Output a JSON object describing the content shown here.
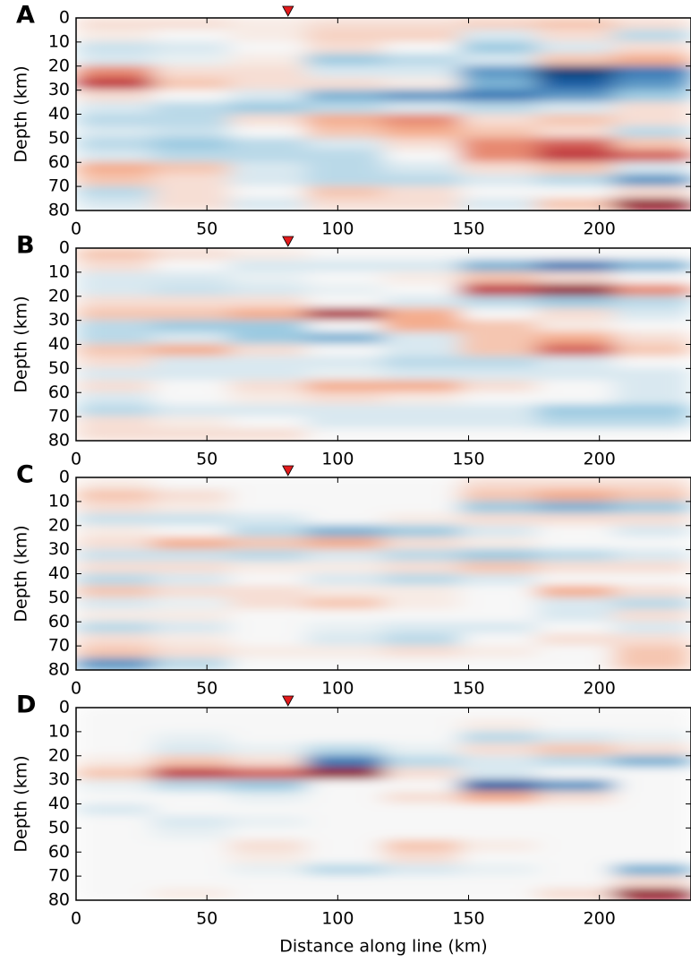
{
  "chart_data": [
    {
      "type": "heatmap",
      "title": "A",
      "ylabel": "Depth (km)",
      "xlim": [
        0,
        235
      ],
      "xticks": [
        0,
        50,
        100,
        150,
        200
      ],
      "ylim": [
        80,
        0
      ],
      "yticks": [
        0,
        10,
        20,
        30,
        40,
        50,
        60,
        70,
        80
      ],
      "zlim": [
        -1,
        1
      ],
      "colormap": [
        "#053061",
        "#2166ac",
        "#92c5de",
        "#f7f7f7",
        "#f4a582",
        "#b2182b",
        "#67001f"
      ],
      "marker_x": 81,
      "marker_color": "#e31a1c",
      "x": [
        14.7,
        44.1,
        73.4,
        102.8,
        132.2,
        161.6,
        190.9,
        220.3
      ],
      "y": [
        2.5,
        7.5,
        12.5,
        17.5,
        22.5,
        27.5,
        32.5,
        37.5,
        42.5,
        47.5,
        52.5,
        57.5,
        62.5,
        67.5,
        72.5,
        77.5
      ],
      "z": [
        [
          0.1,
          0.1,
          0.05,
          0.1,
          0.1,
          0.15,
          0.2,
          0.1
        ],
        [
          0.05,
          0,
          0.05,
          0.15,
          0.15,
          -0.1,
          0.1,
          -0.2
        ],
        [
          -0.15,
          -0.1,
          0,
          0.1,
          0,
          -0.3,
          -0.1,
          0.1
        ],
        [
          -0.1,
          -0.05,
          0.05,
          -0.3,
          -0.2,
          -0.1,
          0.2,
          0.3
        ],
        [
          0.4,
          0.1,
          0.1,
          -0.1,
          -0.1,
          -0.5,
          -0.9,
          -0.6
        ],
        [
          0.6,
          0.2,
          0.1,
          0.1,
          0.05,
          -0.4,
          -0.7,
          -0.5
        ],
        [
          0.1,
          0,
          -0.1,
          -0.4,
          -0.5,
          -0.6,
          -0.5,
          -0.3
        ],
        [
          -0.1,
          -0.2,
          -0.3,
          -0.2,
          -0.1,
          -0.2,
          -0.1,
          0.1
        ],
        [
          -0.2,
          -0.2,
          0.1,
          0.3,
          0.4,
          0.1,
          0.2,
          0.1
        ],
        [
          -0.1,
          -0.15,
          0,
          0.2,
          0.3,
          0.2,
          0.1,
          -0.2
        ],
        [
          -0.2,
          -0.3,
          -0.2,
          -0.1,
          0.1,
          0.4,
          0.5,
          0.2
        ],
        [
          -0.1,
          -0.2,
          -0.2,
          -0.2,
          0,
          0.4,
          0.6,
          0.5
        ],
        [
          0.3,
          0.2,
          -0.1,
          -0.2,
          -0.1,
          0.1,
          0.2,
          -0.1
        ],
        [
          0.2,
          0.1,
          -0.1,
          -0.2,
          -0.2,
          -0.1,
          -0.2,
          -0.5
        ],
        [
          -0.2,
          0.1,
          0,
          0.2,
          0.1,
          0,
          0,
          0.1
        ],
        [
          -0.1,
          0.1,
          -0.1,
          0.1,
          0.1,
          -0.1,
          0.2,
          0.8
        ]
      ]
    },
    {
      "type": "heatmap",
      "title": "B",
      "ylabel": "Depth (km)",
      "xlim": [
        0,
        235
      ],
      "xticks": [
        0,
        50,
        100,
        150,
        200
      ],
      "ylim": [
        80,
        0
      ],
      "yticks": [
        0,
        10,
        20,
        30,
        40,
        50,
        60,
        70,
        80
      ],
      "zlim": [
        -1,
        1
      ],
      "colormap": [
        "#053061",
        "#2166ac",
        "#92c5de",
        "#f7f7f7",
        "#f4a582",
        "#b2182b",
        "#67001f"
      ],
      "marker_x": 81,
      "marker_color": "#e31a1c",
      "x": [
        14.7,
        44.1,
        73.4,
        102.8,
        132.2,
        161.6,
        190.9,
        220.3
      ],
      "y": [
        2.5,
        7.5,
        12.5,
        17.5,
        22.5,
        27.5,
        32.5,
        37.5,
        42.5,
        47.5,
        52.5,
        57.5,
        62.5,
        67.5,
        72.5,
        77.5
      ],
      "z": [
        [
          0.2,
          0.1,
          0.05,
          0,
          0,
          0,
          0,
          0
        ],
        [
          0.1,
          0,
          -0.1,
          -0.1,
          -0.1,
          -0.4,
          -0.6,
          -0.4
        ],
        [
          -0.1,
          -0.1,
          -0.05,
          0,
          0.05,
          0.2,
          0.1,
          0
        ],
        [
          -0.1,
          -0.15,
          -0.1,
          -0.05,
          0,
          0.6,
          0.8,
          0.4
        ],
        [
          0.1,
          0.1,
          0.1,
          0,
          -0.1,
          -0.2,
          -0.3,
          -0.2
        ],
        [
          0.2,
          0.2,
          0.3,
          0.7,
          0.3,
          0,
          0.1,
          -0.1
        ],
        [
          -0.2,
          -0.3,
          -0.3,
          0,
          0.3,
          0.2,
          0.05,
          0
        ],
        [
          -0.2,
          -0.1,
          -0.3,
          -0.4,
          -0.1,
          0.2,
          0.3,
          0.1
        ],
        [
          0.2,
          0.3,
          0.1,
          0,
          -0.1,
          0.2,
          0.5,
          0.2
        ],
        [
          0.1,
          -0.1,
          -0.1,
          -0.1,
          -0.2,
          -0.2,
          -0.1,
          0
        ],
        [
          -0.1,
          -0.1,
          -0.1,
          -0.05,
          -0.1,
          -0.1,
          -0.1,
          -0.1
        ],
        [
          0.1,
          0,
          0.1,
          0.3,
          0.3,
          0.1,
          0,
          -0.1
        ],
        [
          -0.1,
          0,
          0.05,
          0.1,
          0.05,
          0,
          0,
          -0.1
        ],
        [
          -0.2,
          -0.1,
          -0.1,
          -0.1,
          -0.1,
          -0.1,
          -0.3,
          -0.3
        ],
        [
          0.1,
          0.05,
          0,
          -0.1,
          -0.1,
          -0.1,
          -0.2,
          -0.2
        ],
        [
          0.1,
          0.1,
          0.1,
          0,
          0,
          0,
          0,
          0
        ]
      ]
    },
    {
      "type": "heatmap",
      "title": "C",
      "ylabel": "Depth (km)",
      "xlim": [
        0,
        235
      ],
      "xticks": [
        0,
        50,
        100,
        150,
        200
      ],
      "ylim": [
        80,
        0
      ],
      "yticks": [
        0,
        10,
        20,
        30,
        40,
        50,
        60,
        70,
        80
      ],
      "zlim": [
        -1,
        1
      ],
      "colormap": [
        "#053061",
        "#2166ac",
        "#92c5de",
        "#f7f7f7",
        "#f4a582",
        "#b2182b",
        "#67001f"
      ],
      "marker_x": 81,
      "marker_color": "#e31a1c",
      "x": [
        14.7,
        44.1,
        73.4,
        102.8,
        132.2,
        161.6,
        190.9,
        220.3
      ],
      "y": [
        2.5,
        7.5,
        12.5,
        17.5,
        22.5,
        27.5,
        32.5,
        37.5,
        42.5,
        47.5,
        52.5,
        57.5,
        62.5,
        67.5,
        72.5,
        77.5
      ],
      "z": [
        [
          0.05,
          0,
          0,
          0,
          0,
          0.1,
          0.1,
          0.1
        ],
        [
          0.2,
          0.1,
          0,
          0,
          0,
          0.2,
          0.3,
          0.2
        ],
        [
          0.1,
          0.05,
          0,
          0,
          0,
          -0.3,
          -0.4,
          -0.3
        ],
        [
          -0.15,
          -0.15,
          -0.1,
          0,
          0.05,
          0.1,
          0.1,
          0.1
        ],
        [
          0.05,
          0,
          -0.2,
          -0.4,
          -0.3,
          -0.1,
          0,
          -0.1
        ],
        [
          0.1,
          0.3,
          0.2,
          0.3,
          0.1,
          0.05,
          0,
          0
        ],
        [
          -0.15,
          -0.15,
          -0.2,
          -0.1,
          -0.2,
          -0.3,
          -0.2,
          -0.1
        ],
        [
          0.1,
          0.1,
          0.05,
          0.05,
          0.1,
          0.2,
          0.1,
          0.1
        ],
        [
          -0.2,
          -0.1,
          0,
          -0.1,
          -0.2,
          -0.1,
          0,
          0
        ],
        [
          0.2,
          0.1,
          0.1,
          0.05,
          0.05,
          0,
          0.3,
          0.1
        ],
        [
          -0.1,
          -0.05,
          0.1,
          0.2,
          0.05,
          0,
          -0.1,
          -0.2
        ],
        [
          0.05,
          0.05,
          0,
          0,
          0,
          0,
          -0.1,
          0.1
        ],
        [
          -0.2,
          -0.1,
          0,
          -0.05,
          -0.1,
          -0.1,
          0,
          -0.1
        ],
        [
          0.1,
          0.05,
          0,
          -0.1,
          -0.2,
          0,
          0.1,
          0.1
        ],
        [
          0.2,
          0.1,
          0.05,
          0.05,
          0.1,
          0.05,
          0,
          0.2
        ],
        [
          -0.5,
          -0.2,
          0,
          0,
          0,
          0,
          0,
          0.2
        ]
      ]
    },
    {
      "type": "heatmap",
      "title": "D",
      "ylabel": "Depth (km)",
      "xlabel": "Distance along line (km)",
      "xlim": [
        0,
        235
      ],
      "xticks": [
        0,
        50,
        100,
        150,
        200
      ],
      "ylim": [
        80,
        0
      ],
      "yticks": [
        0,
        10,
        20,
        30,
        40,
        50,
        60,
        70,
        80
      ],
      "zlim": [
        -1,
        1
      ],
      "colormap": [
        "#053061",
        "#2166ac",
        "#92c5de",
        "#f7f7f7",
        "#f4a582",
        "#b2182b",
        "#67001f"
      ],
      "marker_x": 81,
      "marker_color": "#e31a1c",
      "x": [
        14.7,
        44.1,
        73.4,
        102.8,
        132.2,
        161.6,
        190.9,
        220.3
      ],
      "y": [
        2.5,
        7.5,
        12.5,
        17.5,
        22.5,
        27.5,
        32.5,
        37.5,
        42.5,
        47.5,
        52.5,
        57.5,
        62.5,
        67.5,
        72.5,
        77.5
      ],
      "z": [
        [
          0,
          0,
          0,
          0,
          0,
          0,
          0,
          0
        ],
        [
          0,
          0,
          0,
          0,
          0,
          0.05,
          0,
          0
        ],
        [
          0,
          -0.05,
          0,
          0,
          0,
          -0.2,
          -0.1,
          -0.05
        ],
        [
          0,
          -0.1,
          -0.05,
          -0.2,
          -0.05,
          0.1,
          0.2,
          0.1
        ],
        [
          0.05,
          0.2,
          0.1,
          -0.6,
          -0.2,
          -0.1,
          -0.2,
          -0.4
        ],
        [
          0.2,
          0.6,
          0.5,
          0.8,
          0.1,
          -0.1,
          0,
          0
        ],
        [
          -0.05,
          -0.2,
          -0.3,
          0,
          0,
          -0.7,
          -0.5,
          0
        ],
        [
          0,
          0,
          -0.05,
          0,
          0.1,
          0.3,
          0.1,
          0
        ],
        [
          -0.1,
          0,
          0,
          0,
          0,
          0,
          0,
          0
        ],
        [
          0,
          -0.1,
          -0.05,
          0,
          0,
          0,
          0,
          0
        ],
        [
          0,
          -0.05,
          0,
          0,
          0,
          0,
          0,
          0
        ],
        [
          0,
          0,
          0.1,
          0,
          0.2,
          0.05,
          0,
          0
        ],
        [
          0,
          0,
          0.05,
          0,
          0.1,
          0,
          0,
          0
        ],
        [
          0,
          0,
          -0.05,
          -0.2,
          -0.1,
          -0.05,
          0,
          -0.4
        ],
        [
          0,
          0,
          0,
          0,
          0,
          0,
          0,
          0.1
        ],
        [
          0,
          0.05,
          0,
          0,
          0,
          0,
          0.1,
          0.8
        ]
      ]
    }
  ]
}
